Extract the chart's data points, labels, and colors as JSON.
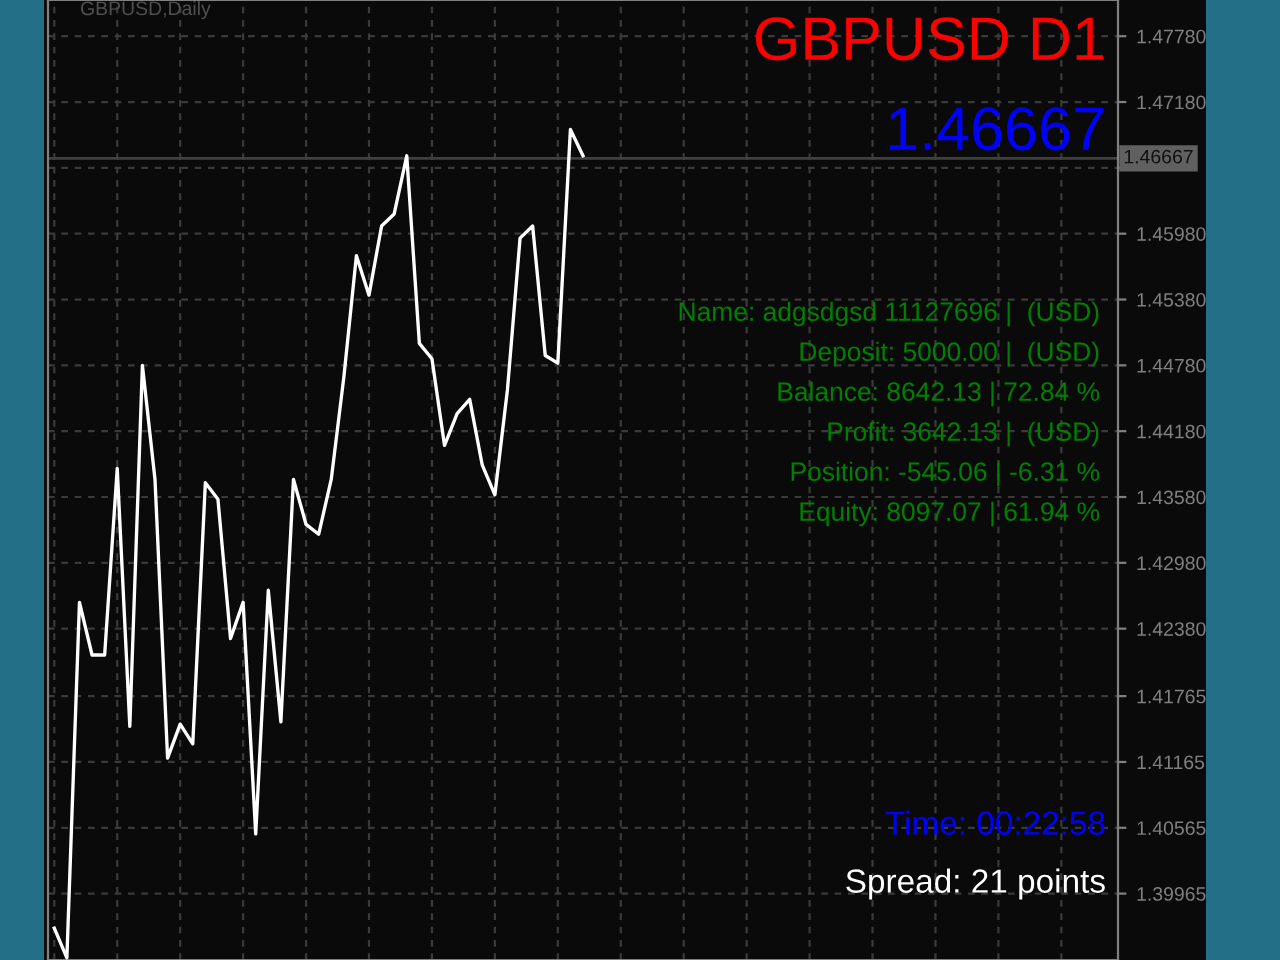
{
  "chart_data": {
    "type": "line",
    "title": "GBPUSD D1",
    "subtitle": "GBPUSD,Daily",
    "categories": [
      null,
      null,
      null,
      null,
      null,
      null,
      null,
      null,
      null,
      null,
      null,
      null,
      null,
      null,
      null,
      null,
      null,
      null,
      null,
      null,
      null,
      null,
      null,
      null,
      null,
      null,
      null,
      null,
      null,
      null,
      null,
      null,
      null,
      null,
      null,
      null,
      null,
      null,
      null,
      null,
      null,
      null,
      null,
      null,
      null,
      null,
      null,
      null,
      null,
      null,
      null,
      null,
      null,
      null,
      null,
      null,
      null,
      null,
      null,
      null,
      null,
      null,
      null,
      null,
      null,
      null,
      null,
      null,
      null,
      null,
      null,
      null,
      null,
      null,
      null,
      null,
      null,
      null,
      null,
      null,
      null,
      null,
      null,
      null,
      null
    ],
    "series": [
      {
        "color": "#ffffff",
        "values": [
          1.3965,
          1.3938,
          1.4262,
          1.4214,
          1.4214,
          1.4384,
          1.4149,
          1.4478,
          1.4374,
          1.412,
          1.4151,
          1.4133,
          1.4371,
          1.4356,
          1.4229,
          1.4262,
          1.4051,
          1.4273,
          1.4153,
          1.4374,
          1.4333,
          1.4324,
          1.4374,
          1.4467,
          1.4578,
          1.4542,
          1.4605,
          1.4616,
          1.4669,
          1.4498,
          1.4484,
          1.4405,
          1.4434,
          1.4447,
          1.4387,
          1.436,
          1.4456,
          1.4594,
          1.4605,
          1.4487,
          1.448,
          1.4693,
          1.4669,
          null,
          null,
          null,
          null,
          null,
          null,
          null,
          null,
          null,
          null,
          null,
          null,
          null,
          null,
          null,
          null,
          null,
          null,
          null,
          null,
          null,
          null,
          null,
          null,
          null,
          null,
          null,
          null,
          null,
          null,
          null,
          null,
          null,
          null,
          null,
          null,
          null,
          null,
          null,
          null,
          null,
          null
        ]
      }
    ],
    "ylim": [
      1.3936,
      1.4811
    ],
    "yticks": [
      1.39965,
      1.40565,
      1.41165,
      1.41765,
      {
        "value": 1.4238,
        "label": "1.42380"
      },
      {
        "value": 1.4298,
        "label": "1.42980"
      },
      {
        "value": 1.4358,
        "label": "1.43580"
      },
      {
        "value": 1.4418,
        "label": "1.44180"
      },
      {
        "value": 1.4478,
        "label": "1.44780"
      },
      {
        "value": 1.4538,
        "label": "1.45380"
      },
      {
        "value": 1.4598,
        "label": "1.45980"
      },
      {
        "value": 1.4658,
        "label": null
      },
      {
        "value": 1.4718,
        "label": "1.47180"
      },
      {
        "value": 1.4778,
        "label": "1.47780"
      }
    ],
    "ref_lines": [
      {
        "axis": "y",
        "value": 1.46667,
        "label": "1.46667",
        "color": "#404040"
      }
    ],
    "annotations": [
      "1.46667",
      "Name: adgsdgsd 11127696 |  (USD)",
      "Deposit: 5000.00 |  (USD)",
      "Balance: 8642.13 | 72.84 %",
      "Profit: 3642.13 |  (USD)",
      "Position: -545.06 | -6.31 %",
      "Equity: 8097.07 | 61.94 %",
      "Time: 00:22:58",
      "Spread: 21 points"
    ],
    "grid": true,
    "tick_labels": "y",
    "marker": "none",
    "line_style": "solid",
    "legend": false
  }
}
